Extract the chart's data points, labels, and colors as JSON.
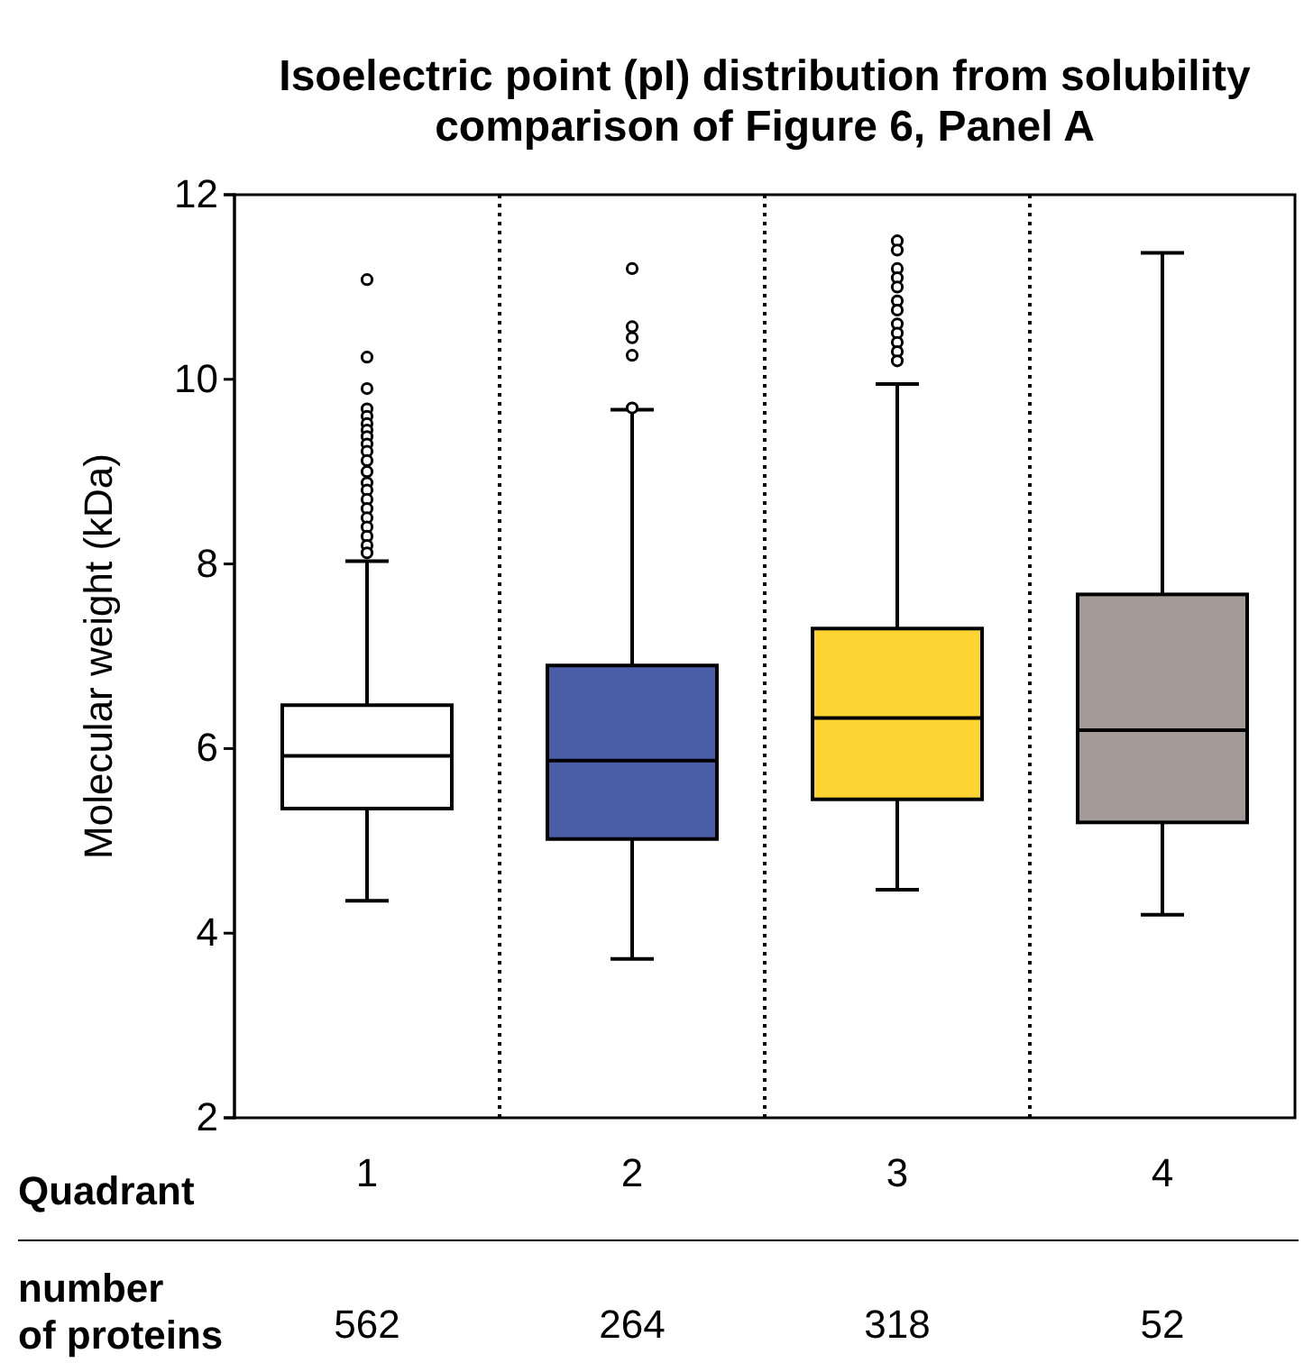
{
  "chart_data": {
    "type": "box",
    "title": "Isoelectric point (pI) distribution from solubility comparison of Figure 6, Panel A",
    "xlabel": "Quadrant",
    "ylabel": "Molecular weight (kDa)",
    "categories": [
      "1",
      "2",
      "3",
      "4"
    ],
    "colors": [
      "#ffffff",
      "#4a5ea8",
      "#fcd532",
      "#a49a98"
    ],
    "boxes": [
      {
        "low": 4.35,
        "q1": 5.35,
        "median": 5.92,
        "q3": 6.47,
        "high": 8.03,
        "outliers": [
          11.08,
          10.24,
          9.9,
          9.68,
          9.6,
          9.52,
          9.45,
          9.38,
          9.3,
          9.22,
          9.12,
          9.0,
          8.88,
          8.8,
          8.7,
          8.6,
          8.5,
          8.4,
          8.3,
          8.2,
          8.12
        ]
      },
      {
        "low": 3.72,
        "q1": 5.02,
        "median": 5.87,
        "q3": 6.9,
        "high": 9.67,
        "outliers": [
          11.2,
          10.57,
          10.45,
          10.26,
          9.69
        ]
      },
      {
        "low": 4.47,
        "q1": 5.45,
        "median": 6.33,
        "q3": 7.3,
        "high": 9.95,
        "outliers": [
          11.5,
          11.4,
          11.2,
          11.1,
          11.0,
          10.85,
          10.75,
          10.6,
          10.5,
          10.4,
          10.3,
          10.2
        ]
      },
      {
        "low": 4.2,
        "q1": 5.2,
        "median": 6.2,
        "q3": 7.67,
        "high": 11.37
      }
    ],
    "ylim": [
      2,
      12
    ],
    "yticks": [
      2,
      4,
      6,
      8,
      10,
      12
    ],
    "annotations": [
      "number of proteins",
      "562",
      "264",
      "318",
      "52"
    ]
  }
}
